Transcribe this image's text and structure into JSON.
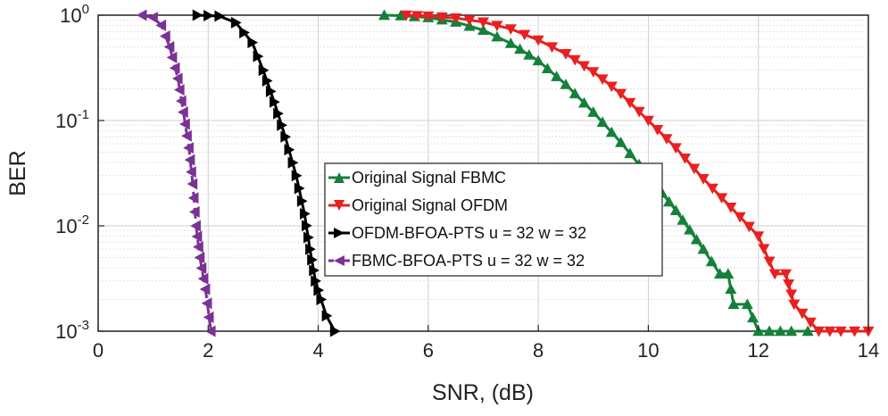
{
  "chart_data": {
    "type": "line",
    "title": "",
    "xlabel": "SNR, (dB)",
    "ylabel": "BER",
    "xlim": [
      0,
      14
    ],
    "ylim": [
      0.001,
      1
    ],
    "yscale": "log",
    "grid": true,
    "legend_position": "center",
    "x_ticks": [
      0,
      2,
      4,
      6,
      8,
      10,
      12,
      14
    ],
    "y_ticks": [
      {
        "value": 1,
        "base": "10",
        "exp": "0"
      },
      {
        "value": 0.1,
        "base": "10",
        "exp": "-1"
      },
      {
        "value": 0.01,
        "base": "10",
        "exp": "-2"
      },
      {
        "value": 0.001,
        "base": "10",
        "exp": "-3"
      }
    ],
    "series": [
      {
        "name": "Original Signal FBMC",
        "color": "#15803a",
        "marker": "triangle-up",
        "dash": "solid",
        "x": [
          5.2,
          5.5,
          6.0,
          6.5,
          7.0,
          7.5,
          8.0,
          8.5,
          9.0,
          9.5,
          10.0,
          10.5,
          11.0,
          11.3,
          11.45,
          11.55,
          11.8,
          12.0,
          12.2,
          12.6,
          12.9
        ],
        "y": [
          1.0,
          0.99,
          0.95,
          0.86,
          0.72,
          0.54,
          0.37,
          0.22,
          0.12,
          0.062,
          0.03,
          0.014,
          0.006,
          0.0035,
          0.0035,
          0.0018,
          0.0018,
          0.001,
          0.001,
          0.001,
          0.001
        ]
      },
      {
        "name": "Original Signal OFDM",
        "color": "#e8201f",
        "marker": "triangle-down",
        "dash": "solid",
        "x": [
          5.6,
          6.0,
          6.5,
          7.0,
          7.5,
          8.0,
          8.5,
          9.0,
          9.5,
          10.0,
          10.5,
          11.0,
          11.5,
          12.0,
          12.3,
          12.5,
          12.65,
          13.1,
          13.5,
          14.0
        ],
        "y": [
          1.0,
          0.98,
          0.94,
          0.86,
          0.74,
          0.58,
          0.43,
          0.29,
          0.18,
          0.1,
          0.055,
          0.028,
          0.015,
          0.008,
          0.0035,
          0.0035,
          0.0018,
          0.001,
          0.001,
          0.001
        ]
      },
      {
        "name": "OFDM-BFOA-PTS u = 32 w = 32",
        "color": "#000000",
        "marker": "triangle-right",
        "dash": "solid",
        "x": [
          1.8,
          2.2,
          2.5,
          2.8,
          3.0,
          3.2,
          3.4,
          3.6,
          3.75,
          3.85,
          3.95,
          4.05,
          4.15,
          4.3
        ],
        "y": [
          1.0,
          0.98,
          0.85,
          0.55,
          0.3,
          0.15,
          0.07,
          0.03,
          0.013,
          0.006,
          0.003,
          0.002,
          0.0014,
          0.001
        ]
      },
      {
        "name": "FBMC-BFOA-PTS u = 32 w = 32",
        "color": "#7b3294",
        "marker": "triangle-left",
        "dash": "dashed",
        "x": [
          0.8,
          1.0,
          1.15,
          1.3,
          1.45,
          1.55,
          1.65,
          1.72,
          1.78,
          1.85,
          1.95,
          2.05
        ],
        "y": [
          1.0,
          0.95,
          0.8,
          0.5,
          0.25,
          0.12,
          0.055,
          0.025,
          0.01,
          0.005,
          0.0025,
          0.001
        ]
      }
    ]
  }
}
